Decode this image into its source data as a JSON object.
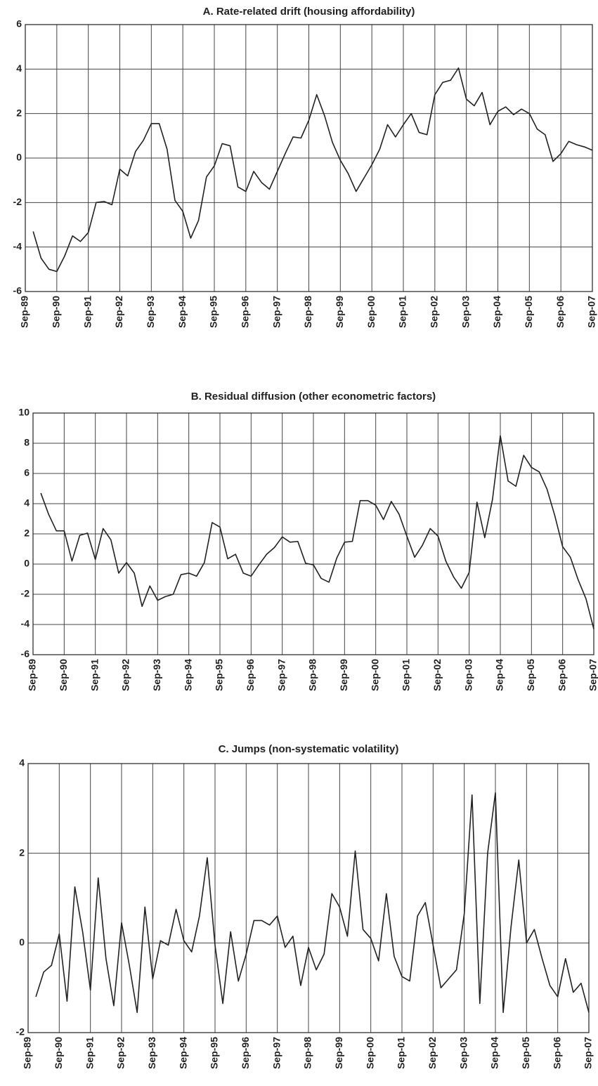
{
  "chart_data": [
    {
      "type": "line",
      "title": "A. Rate-related drift (housing affordability)",
      "categories": [
        "Sep-89",
        null,
        null,
        null,
        "Sep-90",
        null,
        null,
        null,
        "Sep-91",
        null,
        null,
        null,
        "Sep-92",
        null,
        null,
        null,
        "Sep-93",
        null,
        null,
        null,
        "Sep-94",
        null,
        null,
        null,
        "Sep-95",
        null,
        null,
        null,
        "Sep-96",
        null,
        null,
        null,
        "Sep-97",
        null,
        null,
        null,
        "Sep-98",
        null,
        null,
        null,
        "Sep-99",
        null,
        null,
        null,
        "Sep-00",
        null,
        null,
        null,
        "Sep-01",
        null,
        null,
        null,
        "Sep-02",
        null,
        null,
        null,
        "Sep-03",
        null,
        null,
        null,
        "Sep-04",
        null,
        null,
        null,
        "Sep-05",
        null,
        null,
        null,
        "Sep-06",
        null,
        null,
        null,
        "Sep-07"
      ],
      "values": [
        null,
        -3.3,
        -4.5,
        -5.0,
        -5.1,
        -4.4,
        -3.5,
        -3.75,
        -3.35,
        -2.0,
        -1.95,
        -2.1,
        -0.5,
        -0.8,
        0.3,
        0.8,
        1.55,
        1.55,
        0.4,
        -1.9,
        -2.4,
        -3.6,
        -2.8,
        -0.85,
        -0.35,
        0.65,
        0.55,
        -1.3,
        -1.5,
        -0.6,
        -1.1,
        -1.4,
        -0.6,
        0.2,
        0.95,
        0.9,
        1.7,
        2.85,
        1.9,
        0.7,
        -0.1,
        -0.7,
        -1.5,
        -0.9,
        -0.3,
        0.4,
        1.5,
        0.95,
        1.5,
        2.0,
        1.15,
        1.05,
        2.85,
        3.4,
        3.5,
        4.05,
        2.65,
        2.35,
        2.95,
        1.5,
        2.1,
        2.3,
        1.95,
        2.2,
        2.0,
        1.3,
        1.05,
        -0.15,
        0.2,
        0.75,
        0.6,
        0.5,
        0.35
      ],
      "color": "#222222",
      "ylim": [
        -6,
        6
      ],
      "yticks": [
        -6,
        -4,
        -2,
        0,
        2,
        4,
        6
      ],
      "grid": true
    },
    {
      "type": "line",
      "title": "B. Residual diffusion (other econometric factors)",
      "categories": [
        "Sep-89",
        null,
        null,
        null,
        "Sep-90",
        null,
        null,
        null,
        "Sep-91",
        null,
        null,
        null,
        "Sep-92",
        null,
        null,
        null,
        "Sep-93",
        null,
        null,
        null,
        "Sep-94",
        null,
        null,
        null,
        "Sep-95",
        null,
        null,
        null,
        "Sep-96",
        null,
        null,
        null,
        "Sep-97",
        null,
        null,
        null,
        "Sep-98",
        null,
        null,
        null,
        "Sep-99",
        null,
        null,
        null,
        "Sep-00",
        null,
        null,
        null,
        "Sep-01",
        null,
        null,
        null,
        "Sep-02",
        null,
        null,
        null,
        "Sep-03",
        null,
        null,
        null,
        "Sep-04",
        null,
        null,
        null,
        "Sep-05",
        null,
        null,
        null,
        "Sep-06",
        null,
        null,
        null,
        "Sep-07"
      ],
      "values": [
        null,
        4.7,
        3.3,
        2.2,
        2.2,
        0.2,
        1.9,
        2.05,
        0.3,
        2.35,
        1.6,
        -0.6,
        0.1,
        -0.6,
        -2.8,
        -1.45,
        -2.4,
        -2.15,
        -2.0,
        -0.7,
        -0.6,
        -0.8,
        0.1,
        2.75,
        2.45,
        0.35,
        0.65,
        -0.6,
        -0.8,
        -0.05,
        0.65,
        1.1,
        1.8,
        1.45,
        1.5,
        0.05,
        -0.05,
        -0.95,
        -1.2,
        0.4,
        1.45,
        1.5,
        4.2,
        4.2,
        3.9,
        2.95,
        4.15,
        3.3,
        1.85,
        0.45,
        1.25,
        2.35,
        1.85,
        0.2,
        -0.85,
        -1.6,
        -0.55,
        4.1,
        1.75,
        4.3,
        8.5,
        5.5,
        5.15,
        7.2,
        6.4,
        6.1,
        4.95,
        3.2,
        1.15,
        0.45,
        -1.05,
        -2.3,
        -4.3
      ],
      "color": "#222222",
      "ylim": [
        -6,
        10
      ],
      "yticks": [
        -6,
        -4,
        -2,
        0,
        2,
        4,
        6,
        8,
        10
      ],
      "grid": true
    },
    {
      "type": "line",
      "title": "C. Jumps (non-systematic volatility)",
      "categories": [
        "Sep-89",
        null,
        null,
        null,
        "Sep-90",
        null,
        null,
        null,
        "Sep-91",
        null,
        null,
        null,
        "Sep-92",
        null,
        null,
        null,
        "Sep-93",
        null,
        null,
        null,
        "Sep-94",
        null,
        null,
        null,
        "Sep-95",
        null,
        null,
        null,
        "Sep-96",
        null,
        null,
        null,
        "Sep-97",
        null,
        null,
        null,
        "Sep-98",
        null,
        null,
        null,
        "Sep-99",
        null,
        null,
        null,
        "Sep-00",
        null,
        null,
        null,
        "Sep-01",
        null,
        null,
        null,
        "Sep-02",
        null,
        null,
        null,
        "Sep-03",
        null,
        null,
        null,
        "Sep-04",
        null,
        null,
        null,
        "Sep-05",
        null,
        null,
        null,
        "Sep-06",
        null,
        null,
        null,
        "Sep-07"
      ],
      "values": [
        null,
        -1.2,
        -0.65,
        -0.5,
        0.2,
        -1.3,
        1.25,
        0.25,
        -1.05,
        1.45,
        -0.35,
        -1.4,
        0.45,
        -0.5,
        -1.55,
        0.8,
        -0.8,
        0.05,
        -0.05,
        0.75,
        0.05,
        -0.2,
        0.6,
        1.9,
        -0.05,
        -1.35,
        0.25,
        -0.85,
        -0.25,
        0.5,
        0.5,
        0.4,
        0.6,
        -0.1,
        0.15,
        -0.95,
        -0.1,
        -0.6,
        -0.25,
        1.1,
        0.8,
        0.15,
        2.05,
        0.3,
        0.1,
        -0.4,
        1.1,
        -0.3,
        -0.75,
        -0.85,
        0.6,
        0.9,
        -0.05,
        -1.0,
        -0.8,
        -0.6,
        0.65,
        3.3,
        -1.35,
        2.0,
        3.35,
        -1.55,
        0.35,
        1.85,
        0.0,
        0.3,
        -0.35,
        -0.95,
        -1.2,
        -0.35,
        -1.1,
        -0.9,
        -1.55
      ],
      "color": "#222222",
      "ylim": [
        -2,
        4
      ],
      "yticks": [
        -2,
        0,
        2,
        4
      ],
      "grid": true
    }
  ]
}
